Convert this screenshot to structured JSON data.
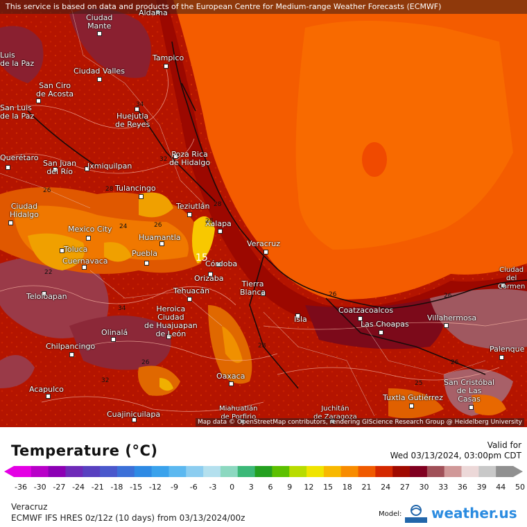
{
  "header": {
    "attribution": "This service is based on data and products of the European Centre for Medium-range Weather Forecasts (ECMWF)"
  },
  "map": {
    "attribution": "Map data © OpenStreetMap contributors, rendering GIScience Research Group @ Heidelberg University",
    "cities": [
      {
        "name": "Aldama"
      },
      {
        "name": "Ciudad\nMante"
      },
      {
        "name": "Tampico"
      },
      {
        "name": "Ciudad Valles"
      },
      {
        "name": "San Ciro\nde Acosta"
      },
      {
        "name": "Huejutla\nde Reyes"
      },
      {
        "name": "Poza Rica\nde Hidalgo"
      },
      {
        "name": "San Juan\ndel Río"
      },
      {
        "name": "Ixmiquilpan"
      },
      {
        "name": "Tulancingo"
      },
      {
        "name": "Teziutlán"
      },
      {
        "name": "Ciudad\nHidalgo"
      },
      {
        "name": "Mexico City"
      },
      {
        "name": "Xalapa"
      },
      {
        "name": "Veracruz"
      },
      {
        "name": "Toluca"
      },
      {
        "name": "Huamantla"
      },
      {
        "name": "Cuernavaca"
      },
      {
        "name": "Puebla"
      },
      {
        "name": "Córdoba"
      },
      {
        "name": "Orizaba"
      },
      {
        "name": "Tierra\nBlanca"
      },
      {
        "name": "Tehuacán"
      },
      {
        "name": "Coatzacoalcos"
      },
      {
        "name": "Teloloapan"
      },
      {
        "name": "Heroica\nCiudad\nde Huajuapan\nde León"
      },
      {
        "name": "Isla"
      },
      {
        "name": "Las Choapas"
      },
      {
        "name": "Villahermosa"
      },
      {
        "name": "Ciudad\ndel\nCarmen"
      },
      {
        "name": "Olinalá"
      },
      {
        "name": "Chilpancingo"
      },
      {
        "name": "Palenque"
      },
      {
        "name": "Oaxaca"
      },
      {
        "name": "Acapulco"
      },
      {
        "name": "San Cristóbal\nde Las\nCasas"
      },
      {
        "name": "Tuxtla Gutiérrez"
      },
      {
        "name": "Cuajinicuilapa"
      },
      {
        "name": "Miahuatlán\nde Porfirio"
      },
      {
        "name": "Juchitán\nde Zaragoza"
      },
      {
        "name": "Querétaro"
      },
      {
        "name": "Luis\nde la Paz"
      },
      {
        "name": "San Luis\nde la Paz"
      }
    ],
    "contour_labels": [
      "34",
      "32",
      "26",
      "28",
      "24",
      "22",
      "15",
      "26",
      "28",
      "28",
      "26",
      "34",
      "26",
      "28",
      "26",
      "32",
      "26",
      "25"
    ]
  },
  "legend": {
    "title": "Temperature (°C)",
    "valid_label": "Valid for",
    "valid_time": "Wed 03/13/2024, 03:00pm CDT",
    "ticks": [
      "-36",
      "-30",
      "-27",
      "-24",
      "-21",
      "-18",
      "-15",
      "-12",
      "-9",
      "-6",
      "-3",
      "0",
      "3",
      "6",
      "9",
      "12",
      "15",
      "18",
      "21",
      "24",
      "27",
      "30",
      "33",
      "36",
      "39",
      "44",
      "50"
    ],
    "colors": [
      "#e400e4",
      "#b800c8",
      "#8c00b4",
      "#6e2ab8",
      "#5840c0",
      "#4a58cc",
      "#3c70d8",
      "#2e8ae4",
      "#3aa2ec",
      "#5cb8f0",
      "#8ccdf0",
      "#b4e0ee",
      "#8cd8c0",
      "#3cb878",
      "#24a020",
      "#5cc000",
      "#b8dc00",
      "#f0e400",
      "#f8b800",
      "#f88c00",
      "#f05a00",
      "#d42800",
      "#a00a00",
      "#800020",
      "#a05058",
      "#d09898",
      "#ecd8d8",
      "#c8c8c8",
      "#909090"
    ],
    "location": "Veracruz",
    "model": "ECMWF IFS HRES 0z/12z (10 days) from 03/13/2024/00z",
    "model_label": "Model:",
    "brand": "weather.us"
  }
}
